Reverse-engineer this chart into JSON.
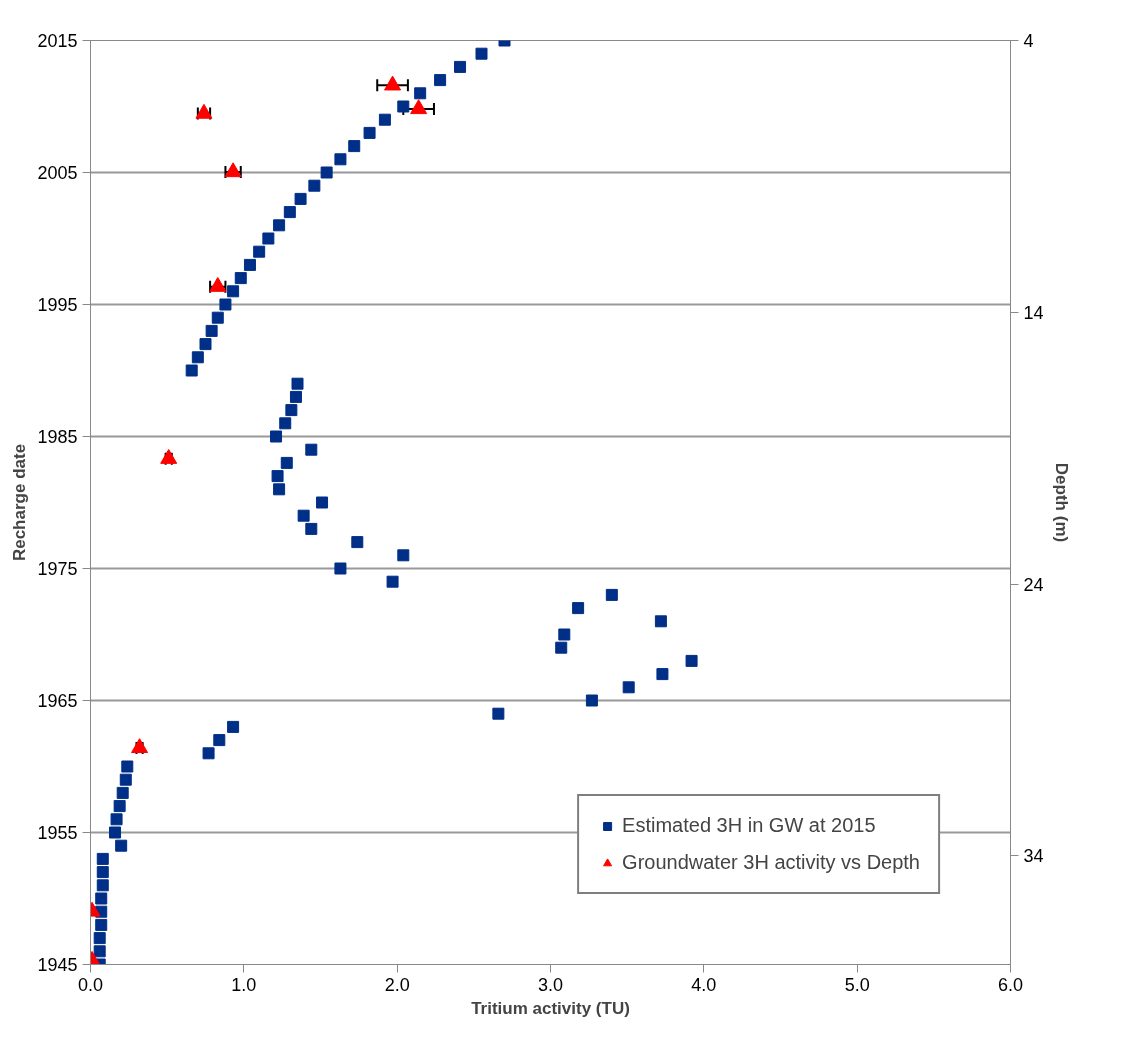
{
  "chart_data": {
    "type": "scatter",
    "xlabel": "Tritium activity (TU)",
    "ylabel": "Recharge date",
    "y2label": "Depth (m)",
    "xlim": [
      0,
      6
    ],
    "xticks": [
      {
        "value": 0,
        "label": "0.0"
      },
      {
        "value": 1,
        "label": "1.0"
      },
      {
        "value": 2,
        "label": "2.0"
      },
      {
        "value": 3,
        "label": "3.0"
      },
      {
        "value": 4,
        "label": "4.0"
      },
      {
        "value": 5,
        "label": "5.0"
      },
      {
        "value": 6,
        "label": "6.0"
      }
    ],
    "ylim": [
      1945,
      2015
    ],
    "yticks": [
      1945,
      1955,
      1965,
      1975,
      1985,
      1995,
      2005,
      2015
    ],
    "y2lim": [
      38,
      4
    ],
    "y2ticks": [
      4,
      14,
      24,
      34
    ],
    "grid": "y",
    "legend": "bottom right",
    "series": [
      {
        "name": "Estimated 3H in GW at 2015",
        "color": "#002f87",
        "marker": "square",
        "x": [
          0.06,
          0.06,
          0.06,
          0.07,
          0.07,
          0.07,
          0.08,
          0.08,
          0.08,
          0.2,
          0.16,
          0.17,
          0.19,
          0.21,
          0.23,
          0.24,
          0.77,
          0.84,
          0.93,
          2.66,
          3.27,
          3.51,
          3.73,
          3.92,
          3.07,
          3.09,
          3.72,
          3.18,
          3.4,
          1.97,
          1.63,
          2.04,
          1.74,
          1.44,
          1.39,
          1.51,
          1.23,
          1.22,
          1.28,
          1.44,
          1.21,
          1.27,
          1.31,
          1.34,
          1.35,
          0.66,
          0.7,
          0.75,
          0.79,
          0.83,
          0.88,
          0.93,
          0.98,
          1.04,
          1.1,
          1.16,
          1.23,
          1.3,
          1.37,
          1.46,
          1.54,
          1.63,
          1.72,
          1.82,
          1.92,
          2.04,
          2.15,
          2.28,
          2.41,
          2.55,
          2.7
        ],
        "values": [
          1945,
          1946,
          1947,
          1948,
          1949,
          1950,
          1951,
          1952,
          1953,
          1954,
          1955,
          1956,
          1957,
          1958,
          1959,
          1960,
          1961,
          1962,
          1963,
          1964,
          1965,
          1966,
          1967,
          1968,
          1969,
          1970,
          1971,
          1972,
          1973,
          1974,
          1975,
          1976,
          1977,
          1978,
          1979,
          1980,
          1981,
          1982,
          1983,
          1984,
          1985,
          1986,
          1987,
          1988,
          1989,
          1990,
          1991,
          1992,
          1993,
          1994,
          1995,
          1996,
          1997,
          1998,
          1999,
          2000,
          2001,
          2002,
          2003,
          2004,
          2005,
          2006,
          2007,
          2008,
          2009,
          2010,
          2011,
          2012,
          2013,
          2014,
          2015
        ]
      },
      {
        "name": "Groundwater 3H activity vs Depth",
        "color": "#ff0000",
        "marker": "triangle",
        "axis": "y2",
        "x": [
          1.97,
          2.14,
          0.74,
          0.93,
          0.83,
          0.51,
          0.32,
          0.01,
          0.01
        ],
        "values": [
          5.65,
          6.52,
          6.69,
          8.84,
          13.06,
          19.39,
          30.03,
          36.05,
          37.86
        ],
        "xerrors": [
          0.1,
          0.1,
          0.04,
          0.05,
          0.05,
          0.02,
          0.02,
          null,
          null
        ]
      }
    ]
  }
}
